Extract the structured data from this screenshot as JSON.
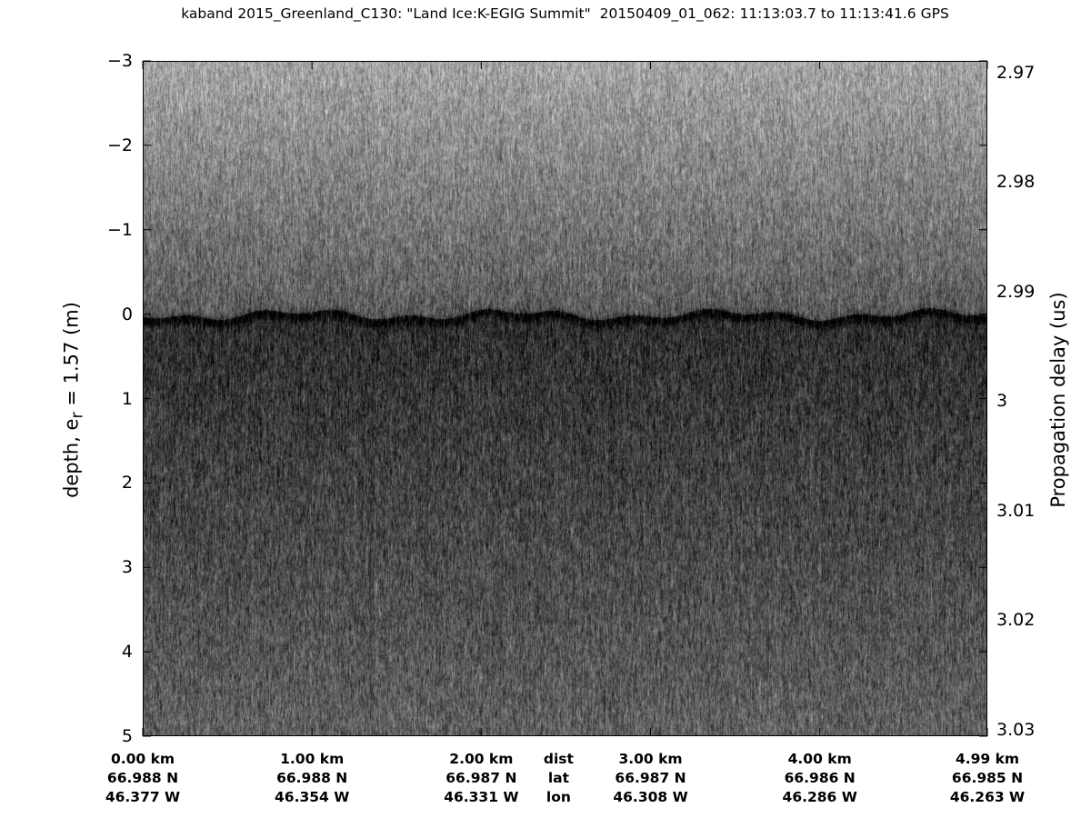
{
  "chart_data": {
    "type": "heatmap",
    "title": "kaband 2015_Greenland_C130: \"Land Ice:K-EGIG Summit\"  20150409_01_062: 11:13:03.7 to 11:13:41.6 GPS",
    "ylabel": "depth, e",
    "ylabel_sub": "r",
    "ylabel_rest": " = 1.57 (m)",
    "y2label": "Propagation delay (us)",
    "ylim": [
      -3,
      5
    ],
    "y_reversed": true,
    "yticks": [
      "−3",
      "−2",
      "−1",
      "0",
      "1",
      "2",
      "3",
      "4",
      "5"
    ],
    "ytick_values": [
      -3,
      -2,
      -1,
      0,
      1,
      2,
      3,
      4,
      5
    ],
    "y2lim": [
      2.97,
      3.03
    ],
    "y2ticks": [
      "2.97",
      "2.98",
      "2.99",
      "3",
      "3.01",
      "3.02",
      "3.03"
    ],
    "y2tick_values": [
      2.97,
      2.98,
      2.99,
      3.0,
      3.01,
      3.02,
      3.03
    ],
    "xlim_km": [
      0,
      4.99
    ],
    "colormap": "gray",
    "surface_depth_m": 0,
    "x_label_rows": {
      "dist": [
        "0.00 km",
        "1.00 km",
        "2.00 km",
        "3.00 km",
        "4.00 km",
        "4.99 km"
      ],
      "dist_values": [
        0,
        1,
        2,
        3,
        4,
        4.99
      ],
      "lat": [
        "66.988 N",
        "66.988 N",
        "66.987 N",
        "66.987 N",
        "66.986 N",
        "66.985 N"
      ],
      "lon": [
        "46.377 W",
        "46.354 W",
        "46.331 W",
        "46.308 W",
        "46.286 W",
        "46.263 W"
      ]
    },
    "row_names": [
      "dist",
      "lat",
      "lon"
    ]
  }
}
